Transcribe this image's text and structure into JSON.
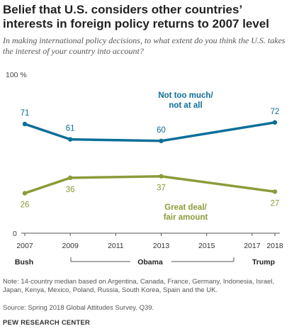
{
  "title": "Belief that U.S. considers other countries’ interests in foreign policy returns to 2007 level",
  "subtitle": "In making international policy decisions, to what extent do you think the U.S. takes the interest of your country into account?",
  "note": "Note: 14-country median based on Argentina, Canada, France, Germany, Indonesia, Israel, Japan, Kenya, Mexico, Poland, Russia, South Korea, Spain and the UK.",
  "source": "Source: Spring 2018 Global Attitudes Survey. Q39.",
  "footer": "PEW RESEARCH CENTER",
  "chart_data": {
    "type": "line",
    "y_top_label": "100 %",
    "y_zero_label": "0",
    "ylim": [
      0,
      100
    ],
    "x_ticks": [
      2007,
      2009,
      2011,
      2013,
      2015,
      2017,
      2018
    ],
    "x": [
      2007,
      2009,
      2013,
      2018
    ],
    "series": [
      {
        "name": "Not too much/ not at all",
        "label_lines": [
          "Not too much/",
          "not at all"
        ],
        "color": "#0b6e99",
        "values": [
          71,
          61,
          60,
          72
        ]
      },
      {
        "name": "Great deal/ fair amount",
        "label_lines": [
          "Great deal/",
          "fair amount"
        ],
        "color": "#8b9c3a",
        "values": [
          26,
          36,
          37,
          27
        ]
      }
    ],
    "presidents": [
      {
        "name": "Bush"
      },
      {
        "name": "Obama"
      },
      {
        "name": "Trump"
      }
    ]
  }
}
